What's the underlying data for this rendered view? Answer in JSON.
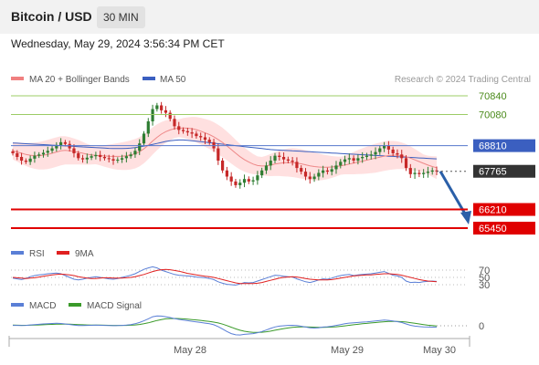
{
  "header": {
    "title": "Bitcoin / USD",
    "timeframe": "30 MIN",
    "datetime": "Wednesday, May 29, 2024 3:56:34 PM CET"
  },
  "legend": {
    "ma20_bb": "MA 20 + Bollinger Bands",
    "ma50": "MA 50",
    "copyright": "Research © 2024 Trading Central",
    "rsi": "RSI",
    "rsi_ma": "9MA",
    "macd": "MACD",
    "macd_signal": "MACD Signal"
  },
  "colors": {
    "candle_up": "#2e7d32",
    "candle_down": "#c62828",
    "bollinger_fill": "#ffd6d6",
    "ma20": "#ee8888",
    "ma50": "#3b5fc0",
    "resistance": "#9ccc65",
    "support": "#e00000",
    "current": "#333333",
    "arrow": "#2a5fa8",
    "rsi": "#5a7fd6",
    "rsi_ma": "#e02020",
    "macd": "#5a7fd6",
    "macd_signal": "#3a9a2a"
  },
  "chart_data": {
    "type": "candlestick",
    "instrument": "Bitcoin / USD",
    "interval": "30 MIN",
    "x_ticks": [
      "May 28",
      "May 29",
      "May 30"
    ],
    "levels": [
      {
        "value": 70840,
        "kind": "resistance"
      },
      {
        "value": 70080,
        "kind": "resistance"
      },
      {
        "value": 68810,
        "kind": "pivot"
      },
      {
        "value": 67765,
        "kind": "current"
      },
      {
        "value": 66210,
        "kind": "support"
      },
      {
        "value": 65450,
        "kind": "support"
      }
    ],
    "price_range": [
      65200,
      71200
    ],
    "forecast": {
      "direction": "down",
      "target": 65450
    },
    "candles_close": [
      68500,
      68350,
      68200,
      68150,
      68280,
      68400,
      68450,
      68520,
      68600,
      68700,
      68820,
      68950,
      68880,
      68700,
      68500,
      68300,
      68250,
      68320,
      68380,
      68430,
      68350,
      68300,
      68260,
      68200,
      68240,
      68300,
      68380,
      68450,
      68600,
      68900,
      69300,
      69800,
      70300,
      70450,
      70250,
      70150,
      69900,
      69600,
      69450,
      69400,
      69350,
      69300,
      69200,
      69150,
      69050,
      68950,
      68700,
      68200,
      67800,
      67550,
      67350,
      67200,
      67300,
      67450,
      67350,
      67400,
      67600,
      67800,
      68000,
      68200,
      68400,
      68350,
      68250,
      68200,
      68150,
      67900,
      67750,
      67550,
      67450,
      67550,
      67700,
      67800,
      67750,
      67850,
      68000,
      68150,
      68250,
      68300,
      68200,
      68300,
      68350,
      68400,
      68450,
      68550,
      68700,
      68800,
      68650,
      68500,
      68450,
      68300,
      67900,
      67650,
      67700,
      67650,
      67700,
      67750,
      67800,
      67765
    ],
    "ma20": [
      68600,
      68550,
      68500,
      68450,
      68420,
      68400,
      68400,
      68420,
      68450,
      68500,
      68550,
      68600,
      68620,
      68600,
      68570,
      68540,
      68500,
      68460,
      68430,
      68410,
      68400,
      68390,
      68380,
      68370,
      68370,
      68380,
      68400,
      68430,
      68480,
      68560,
      68680,
      68830,
      69000,
      69150,
      69280,
      69380,
      69450,
      69500,
      69520,
      69530,
      69520,
      69500,
      69460,
      69400,
      69330,
      69260,
      69170,
      69060,
      68940,
      68800,
      68650,
      68500,
      68360,
      68240,
      68140,
      68060,
      68000,
      67980,
      67990,
      68020,
      68060,
      68090,
      68110,
      68120,
      68120,
      68100,
      68070,
      68030,
      67990,
      67960,
      67940,
      67930,
      67930,
      67940,
      67960,
      67990,
      68020,
      68060,
      68100,
      68140,
      68180,
      68220,
      68260,
      68300,
      68340,
      68380,
      68410,
      68420,
      68420,
      68400,
      68360,
      68300,
      68230,
      68160,
      68090,
      68020,
      67960,
      67910
    ],
    "ma50": [
      68920,
      68910,
      68900,
      68890,
      68880,
      68870,
      68860,
      68850,
      68840,
      68830,
      68820,
      68810,
      68800,
      68790,
      68780,
      68770,
      68760,
      68750,
      68740,
      68730,
      68720,
      68710,
      68700,
      68690,
      68690,
      68690,
      68700,
      68710,
      68730,
      68760,
      68790,
      68820,
      68860,
      68900,
      68940,
      68980,
      69010,
      69030,
      69040,
      69040,
      69030,
      69010,
      68990,
      68970,
      68950,
      68930,
      68910,
      68890,
      68870,
      68850,
      68830,
      68810,
      68790,
      68770,
      68750,
      68730,
      68710,
      68690,
      68670,
      68650,
      68640,
      68630,
      68620,
      68610,
      68600,
      68590,
      68580,
      68570,
      68560,
      68550,
      68540,
      68530,
      68520,
      68510,
      68500,
      68490,
      68480,
      68470,
      68460,
      68450,
      68440,
      68430,
      68420,
      68410,
      68400,
      68390,
      68380,
      68370,
      68360,
      68350,
      68340,
      68330,
      68320,
      68310,
      68300,
      68290,
      68280,
      68270
    ],
    "rsi": {
      "levels": [
        70,
        50,
        30
      ],
      "values": [
        48,
        46,
        44,
        47,
        52,
        55,
        57,
        58,
        60,
        61,
        62,
        60,
        55,
        50,
        45,
        43,
        45,
        48,
        50,
        52,
        50,
        48,
        46,
        45,
        47,
        50,
        53,
        56,
        60,
        66,
        72,
        76,
        79,
        76,
        70,
        66,
        62,
        58,
        56,
        55,
        54,
        53,
        51,
        50,
        49,
        47,
        44,
        38,
        34,
        31,
        30,
        29,
        32,
        36,
        35,
        36,
        40,
        44,
        48,
        52,
        56,
        55,
        53,
        52,
        51,
        46,
        42,
        38,
        36,
        39,
        43,
        46,
        45,
        48,
        52,
        55,
        57,
        58,
        55,
        57,
        58,
        59,
        60,
        62,
        64,
        66,
        61,
        56,
        54,
        50,
        40,
        36,
        37,
        36,
        38,
        39,
        40,
        39
      ],
      "ma_values": [
        50,
        49,
        48,
        47,
        48,
        49,
        51,
        53,
        55,
        57,
        58,
        59,
        58,
        57,
        55,
        52,
        50,
        48,
        47,
        47,
        48,
        49,
        49,
        48,
        48,
        48,
        49,
        50,
        52,
        55,
        58,
        62,
        66,
        69,
        71,
        72,
        71,
        69,
        67,
        64,
        61,
        59,
        57,
        55,
        53,
        52,
        50,
        47,
        44,
        41,
        38,
        35,
        33,
        33,
        33,
        33,
        34,
        36,
        39,
        42,
        45,
        48,
        50,
        51,
        52,
        51,
        49,
        47,
        45,
        44,
        43,
        43,
        43,
        44,
        46,
        48,
        50,
        52,
        54,
        55,
        56,
        57,
        57,
        58,
        59,
        60,
        60,
        59,
        58,
        56,
        53,
        50,
        47,
        44,
        42,
        40,
        39,
        38
      ]
    },
    "macd": {
      "levels": [
        0
      ],
      "macd_values": [
        5,
        4,
        3,
        5,
        10,
        14,
        18,
        22,
        26,
        28,
        30,
        28,
        22,
        15,
        8,
        3,
        2,
        4,
        6,
        8,
        6,
        4,
        2,
        1,
        2,
        4,
        8,
        14,
        24,
        40,
        60,
        85,
        110,
        120,
        118,
        110,
        100,
        88,
        78,
        70,
        62,
        55,
        48,
        40,
        32,
        24,
        12,
        -10,
        -40,
        -70,
        -95,
        -110,
        -112,
        -105,
        -100,
        -95,
        -85,
        -70,
        -52,
        -32,
        -14,
        -5,
        0,
        4,
        6,
        2,
        -6,
        -16,
        -26,
        -28,
        -24,
        -16,
        -12,
        -6,
        4,
        14,
        24,
        32,
        36,
        40,
        44,
        48,
        52,
        58,
        64,
        70,
        66,
        58,
        50,
        40,
        22,
        6,
        -4,
        -10,
        -14,
        -16,
        -17,
        -18
      ],
      "signal_values": [
        8,
        7,
        6,
        6,
        7,
        8,
        10,
        12,
        15,
        17,
        19,
        20,
        20,
        19,
        17,
        14,
        12,
        10,
        9,
        8,
        8,
        7,
        6,
        5,
        4,
        4,
        5,
        7,
        10,
        16,
        24,
        36,
        50,
        64,
        76,
        84,
        88,
        89,
        88,
        85,
        81,
        76,
        71,
        65,
        59,
        52,
        44,
        34,
        20,
        2,
        -18,
        -38,
        -55,
        -67,
        -75,
        -80,
        -81,
        -79,
        -73,
        -65,
        -54,
        -44,
        -35,
        -27,
        -20,
        -15,
        -13,
        -13,
        -16,
        -18,
        -19,
        -19,
        -18,
        -16,
        -12,
        -7,
        -1,
        6,
        12,
        18,
        24,
        29,
        34,
        39,
        44,
        49,
        52,
        53,
        52,
        50,
        45,
        38,
        30,
        22,
        14,
        7,
        2,
        -2
      ]
    }
  }
}
